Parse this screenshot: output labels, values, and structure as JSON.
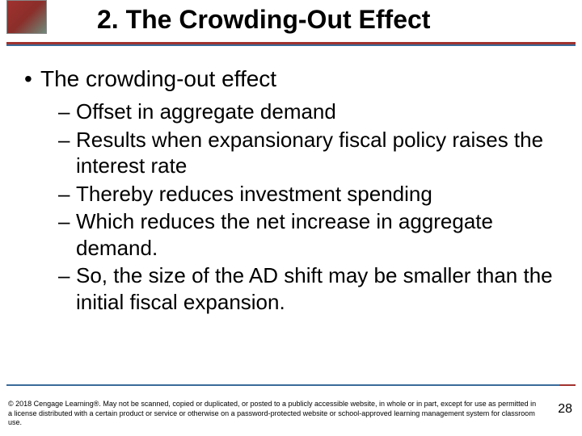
{
  "colors": {
    "title_text": "#000000",
    "body_text": "#000000",
    "underline_red": "#a0322f",
    "underline_blue": "#3a6a9a",
    "background": "#ffffff"
  },
  "typography": {
    "title_fontsize": 32,
    "title_weight": "bold",
    "main_bullet_fontsize": 28,
    "sub_bullet_fontsize": 26,
    "copyright_fontsize": 9,
    "page_number_fontsize": 16,
    "font_family": "Arial"
  },
  "title": "2.  The Crowding-Out Effect",
  "main_bullet": "The crowding-out effect",
  "sub_bullets": [
    "Offset in aggregate demand",
    "Results when expansionary fiscal policy raises the interest rate",
    "Thereby reduces investment spending",
    "Which reduces the net increase in aggregate demand.",
    "So, the size of the AD shift may be smaller than the initial fiscal expansion."
  ],
  "copyright": "© 2018 Cengage Learning®. May not be scanned, copied or duplicated, or posted to a publicly accessible website, in whole or in part, except for use as permitted in a license distributed with a certain product or service or otherwise on a password-protected website or school-approved learning management system for classroom use.",
  "page_number": "28"
}
